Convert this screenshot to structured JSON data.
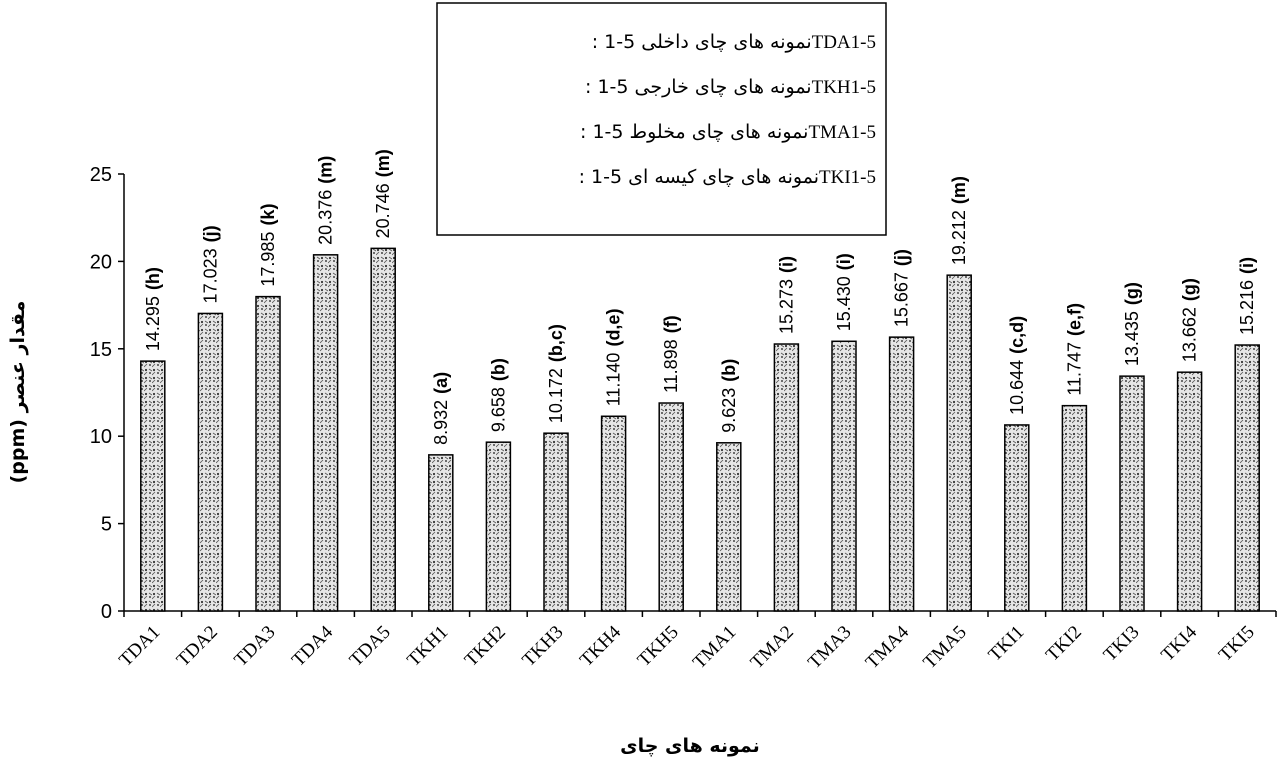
{
  "chart_data": {
    "type": "bar",
    "categories": [
      "TDA1",
      "TDA2",
      "TDA3",
      "TDA4",
      "TDA5",
      "TKH1",
      "TKH2",
      "TKH3",
      "TKH4",
      "TKH5",
      "TMA1",
      "TMA2",
      "TMA3",
      "TMA4",
      "TMA5",
      "TKI1",
      "TKI2",
      "TKI3",
      "TKI4",
      "TKI5"
    ],
    "values": [
      14.295,
      17.023,
      17.985,
      20.376,
      20.746,
      8.932,
      9.658,
      10.172,
      11.14,
      11.898,
      9.623,
      15.273,
      15.43,
      15.667,
      19.212,
      10.644,
      11.747,
      13.435,
      13.662,
      15.216
    ],
    "value_labels": [
      "14.295",
      "17.023",
      "17.985",
      "20.376",
      "20.746",
      "8.932",
      "9.658",
      "10.172",
      "11.140",
      "11.898",
      "9.623",
      "15.273",
      "15.430",
      "15.667",
      "19.212",
      "10.644",
      "11.747",
      "13.435",
      "13.662",
      "15.216"
    ],
    "group_labels": [
      "(h)",
      "(j)",
      "(k)",
      "(m)",
      "(m)",
      "(a)",
      "(b)",
      "(b,c)",
      "(d,e)",
      "(f)",
      "(b)",
      "(i)",
      "(i)",
      "(j)",
      "(m)",
      "(c,d)",
      "(e,f)",
      "(g)",
      "(g)",
      "(i)"
    ],
    "yticks": [
      "0",
      "5",
      "10",
      "15",
      "20",
      "25"
    ],
    "ylim": [
      0,
      25
    ],
    "title": "",
    "xlabel": "نمونه های چای",
    "ylabel": "(ppm) مقدار عنصر",
    "grid": false,
    "legend_position": "top-center",
    "legend": [
      {
        "code": "TDA1-5",
        "text": ": نمونه های چای داخلی 5-1"
      },
      {
        "code": "TKH1-5",
        "text": ": نمونه های چای خارجی 5-1"
      },
      {
        "code": "TMA1-5",
        "text": ": نمونه های چای مخلوط 5-1"
      },
      {
        "code": "TKI1-5",
        "text": ": نمونه های چای کیسه ای 5-1"
      }
    ],
    "colors": {
      "bar_fill": "#d9d9d9",
      "bar_stroke": "#000000",
      "texture": "#555555"
    }
  }
}
